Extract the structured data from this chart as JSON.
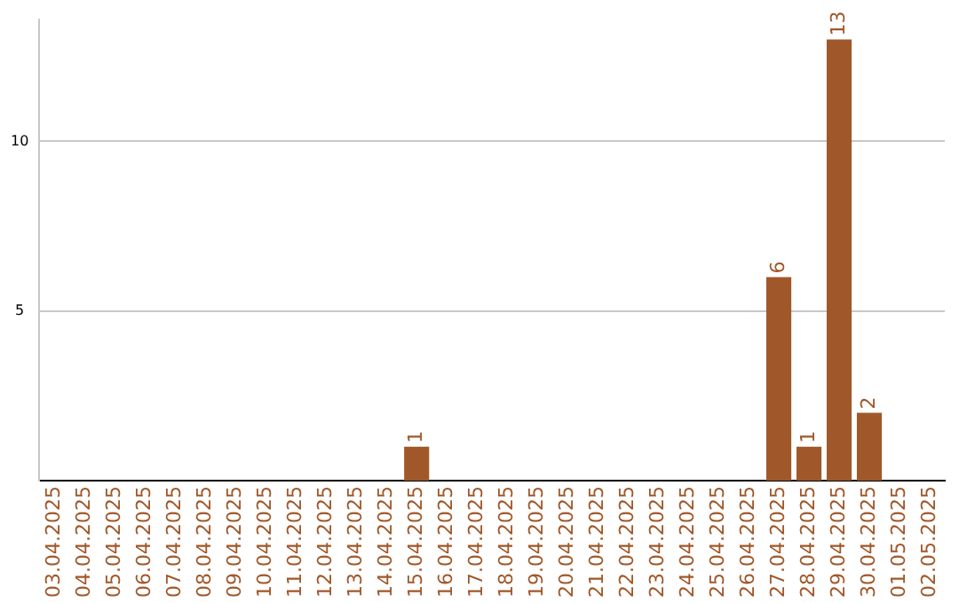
{
  "chart_data": {
    "type": "bar",
    "categories": [
      "03.04.2025",
      "04.04.2025",
      "05.04.2025",
      "06.04.2025",
      "07.04.2025",
      "08.04.2025",
      "09.04.2025",
      "10.04.2025",
      "11.04.2025",
      "12.04.2025",
      "13.04.2025",
      "14.04.2025",
      "15.04.2025",
      "16.04.2025",
      "17.04.2025",
      "18.04.2025",
      "19.04.2025",
      "20.04.2025",
      "21.04.2025",
      "22.04.2025",
      "23.04.2025",
      "24.04.2025",
      "25.04.2025",
      "26.04.2025",
      "27.04.2025",
      "28.04.2025",
      "29.04.2025",
      "30.04.2025",
      "01.05.2025",
      "02.05.2025"
    ],
    "values": [
      0,
      0,
      0,
      0,
      0,
      0,
      0,
      0,
      0,
      0,
      0,
      0,
      1,
      0,
      0,
      0,
      0,
      0,
      0,
      0,
      0,
      0,
      0,
      0,
      6,
      1,
      13,
      2,
      0,
      0
    ],
    "value_labels": [
      null,
      null,
      null,
      null,
      null,
      null,
      null,
      null,
      null,
      null,
      null,
      null,
      "1",
      null,
      null,
      null,
      null,
      null,
      null,
      null,
      null,
      null,
      null,
      null,
      "6",
      "1",
      "13",
      "2",
      null,
      null
    ],
    "color": "#a0582a",
    "ylim": [
      0,
      13.6
    ],
    "yticks": [
      5,
      10
    ],
    "grid": "y",
    "legend": false
  }
}
